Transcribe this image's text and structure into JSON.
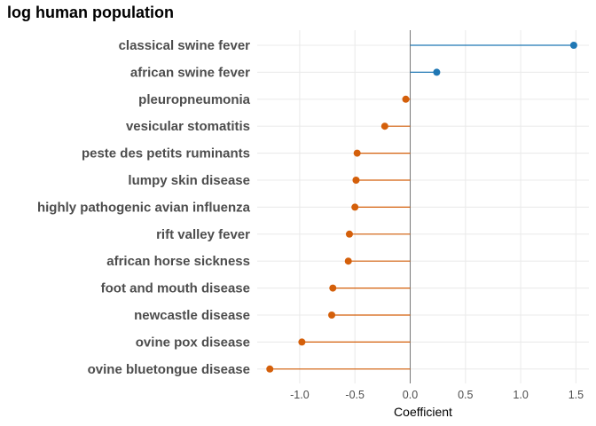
{
  "chart_data": {
    "type": "lollipop",
    "title": "log human population",
    "xlabel": "Coefficient",
    "ylabel": "",
    "xlim": [
      -1.38,
      1.6
    ],
    "x_ticks": [
      -1.0,
      -0.5,
      0.0,
      0.5,
      1.0,
      1.5
    ],
    "x_tick_labels": [
      "-1.0",
      "-0.5",
      "0.0",
      "0.5",
      "1.0",
      "1.5"
    ],
    "grid": true,
    "reference_line": 0,
    "categories": [
      "classical swine fever",
      "african swine fever",
      "pleuropneumonia",
      "vesicular stomatitis",
      "peste des petits ruminants",
      "lumpy skin disease",
      "highly pathogenic avian influenza",
      "rift valley fever",
      "african horse sickness",
      "foot and mouth disease",
      "newcastle disease",
      "ovine pox disease",
      "ovine bluetongue disease"
    ],
    "values": [
      1.48,
      0.24,
      -0.04,
      -0.23,
      -0.48,
      -0.49,
      -0.5,
      -0.55,
      -0.56,
      -0.7,
      -0.71,
      -0.98,
      -1.27
    ],
    "colors": {
      "positive": "#1f77b4",
      "negative": "#d45f0a",
      "zero_line": "#777777",
      "grid": "#ebebeb"
    }
  }
}
